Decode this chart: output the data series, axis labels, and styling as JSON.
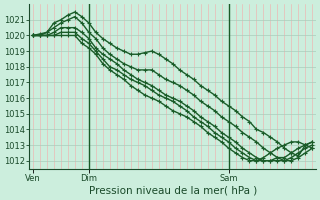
{
  "xlabel": "Pression niveau de la mer( hPa )",
  "ylim": [
    1011.5,
    1022.0
  ],
  "yticks": [
    1012,
    1013,
    1014,
    1015,
    1016,
    1017,
    1018,
    1019,
    1020,
    1021
  ],
  "bg_color": "#cceedd",
  "grid_color_h": "#aaccbb",
  "grid_color_v": "#f4aaaa",
  "line_color": "#1a5c28",
  "xtick_labels": [
    "Ven",
    "Dim",
    "Sam"
  ],
  "xtick_positions": [
    0,
    8,
    28
  ],
  "day_vline_positions": [
    8,
    28
  ],
  "num_points": 41,
  "series": [
    [
      1020.0,
      1020.1,
      1020.2,
      1020.8,
      1021.0,
      1021.3,
      1021.5,
      1021.2,
      1020.8,
      1020.2,
      1019.8,
      1019.5,
      1019.2,
      1019.0,
      1018.8,
      1018.8,
      1018.9,
      1019.0,
      1018.8,
      1018.5,
      1018.2,
      1017.8,
      1017.5,
      1017.2,
      1016.8,
      1016.5,
      1016.2,
      1015.8,
      1015.5,
      1015.2,
      1014.8,
      1014.5,
      1014.0,
      1013.8,
      1013.5,
      1013.2,
      1012.8,
      1012.5,
      1012.3,
      1013.0,
      1013.2
    ],
    [
      1020.0,
      1020.0,
      1020.2,
      1020.5,
      1020.8,
      1021.0,
      1021.2,
      1020.8,
      1020.2,
      1019.8,
      1019.2,
      1018.8,
      1018.5,
      1018.2,
      1018.0,
      1017.8,
      1017.8,
      1017.8,
      1017.5,
      1017.2,
      1017.0,
      1016.8,
      1016.5,
      1016.2,
      1015.8,
      1015.5,
      1015.2,
      1014.8,
      1014.5,
      1014.2,
      1013.8,
      1013.5,
      1013.2,
      1012.8,
      1012.5,
      1012.2,
      1012.0,
      1012.0,
      1012.2,
      1012.5,
      1012.8
    ],
    [
      1020.0,
      1020.0,
      1020.0,
      1020.2,
      1020.5,
      1020.5,
      1020.5,
      1020.2,
      1019.8,
      1019.2,
      1018.8,
      1018.5,
      1018.2,
      1017.8,
      1017.5,
      1017.2,
      1017.0,
      1016.8,
      1016.5,
      1016.2,
      1016.0,
      1015.8,
      1015.5,
      1015.2,
      1014.8,
      1014.5,
      1014.2,
      1013.8,
      1013.5,
      1013.2,
      1012.8,
      1012.5,
      1012.2,
      1012.0,
      1012.0,
      1012.0,
      1012.0,
      1012.2,
      1012.5,
      1012.8,
      1013.0
    ],
    [
      1020.0,
      1020.0,
      1020.0,
      1020.0,
      1020.2,
      1020.2,
      1020.2,
      1019.8,
      1019.5,
      1019.0,
      1018.5,
      1018.0,
      1017.8,
      1017.5,
      1017.2,
      1017.0,
      1016.8,
      1016.5,
      1016.2,
      1016.0,
      1015.8,
      1015.5,
      1015.2,
      1014.8,
      1014.5,
      1014.2,
      1013.8,
      1013.5,
      1013.2,
      1012.8,
      1012.5,
      1012.2,
      1012.0,
      1012.0,
      1012.0,
      1012.2,
      1012.2,
      1012.5,
      1012.8,
      1013.0,
      1013.2
    ],
    [
      1020.0,
      1020.0,
      1020.0,
      1020.0,
      1020.0,
      1020.0,
      1020.0,
      1019.5,
      1019.2,
      1018.8,
      1018.2,
      1017.8,
      1017.5,
      1017.2,
      1016.8,
      1016.5,
      1016.2,
      1016.0,
      1015.8,
      1015.5,
      1015.2,
      1015.0,
      1014.8,
      1014.5,
      1014.2,
      1013.8,
      1013.5,
      1013.2,
      1012.8,
      1012.5,
      1012.2,
      1012.0,
      1012.0,
      1012.2,
      1012.5,
      1012.8,
      1013.0,
      1013.2,
      1013.2,
      1013.0,
      1012.8
    ]
  ],
  "marker": "+",
  "marker_size": 3,
  "linewidth": 1.0,
  "tick_fontsize": 6,
  "xlabel_fontsize": 7.5
}
